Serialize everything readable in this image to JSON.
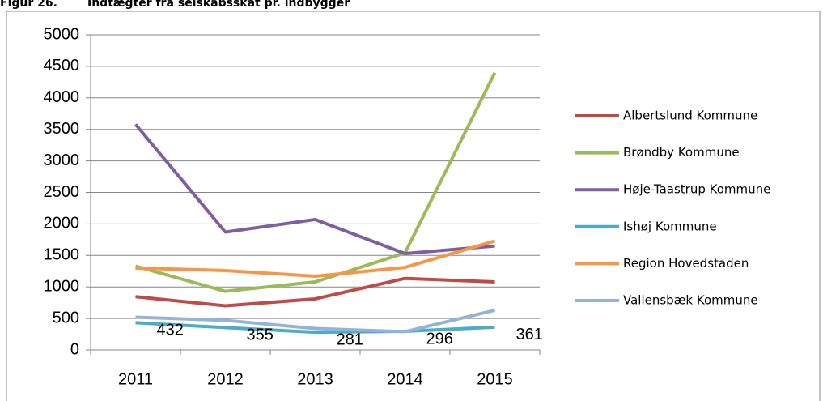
{
  "chart_data": {
    "type": "line",
    "title": "Figur 26.",
    "subtitle": "Indtægter fra selskabsskat pr. indbygger",
    "categories": [
      "2011",
      "2012",
      "2013",
      "2014",
      "2015"
    ],
    "ylim": [
      0,
      5000
    ],
    "yticks": [
      0,
      500,
      1000,
      1500,
      2000,
      2500,
      3000,
      3500,
      4000,
      4500,
      5000
    ],
    "grid": true,
    "legend": "right",
    "series": [
      {
        "name": "Albertslund Kommune",
        "color": "#be4b48",
        "values": [
          845,
          700,
          810,
          1135,
          1080
        ]
      },
      {
        "name": "Brøndby Kommune",
        "color": "#9bbb59",
        "values": [
          1330,
          930,
          1080,
          1540,
          4400
        ]
      },
      {
        "name": "Høje-Taastrup Kommune",
        "color": "#7f5fa0",
        "values": [
          3580,
          1870,
          2070,
          1530,
          1650
        ]
      },
      {
        "name": "Ishøj Kommune",
        "color": "#4bacc6",
        "values": [
          432,
          355,
          281,
          296,
          361
        ],
        "data_labels": true
      },
      {
        "name": "Region Hovedstaden",
        "color": "#f79646",
        "values": [
          1300,
          1260,
          1170,
          1310,
          1730
        ]
      },
      {
        "name": "Vallensbæk Kommune",
        "color": "#95b3d7",
        "values": [
          520,
          470,
          340,
          290,
          630
        ]
      }
    ]
  }
}
